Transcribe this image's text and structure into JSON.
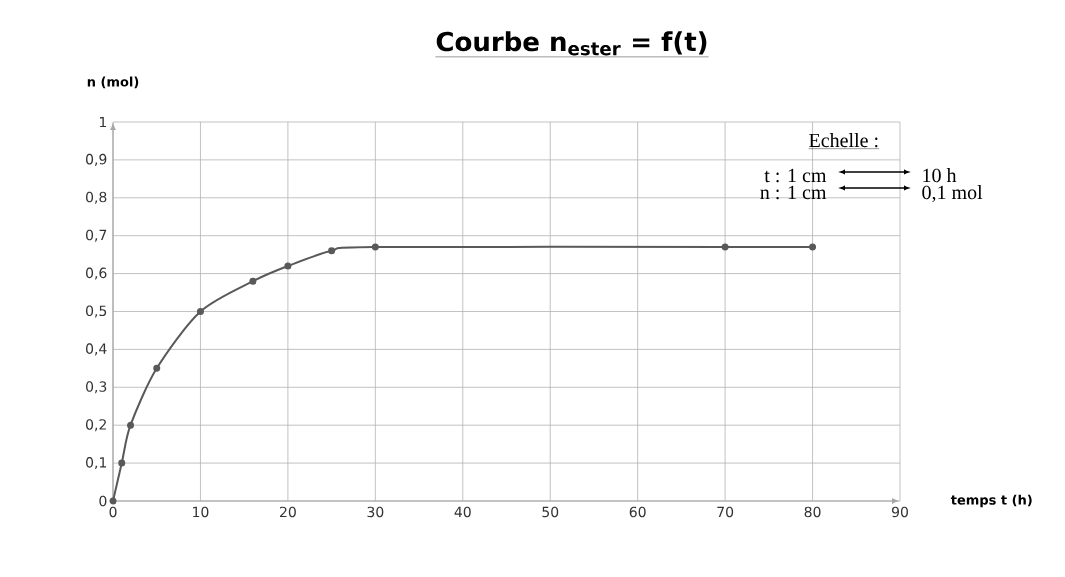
{
  "chart_data": {
    "type": "line",
    "title": "Courbe n$_{ester}$ = f(t)",
    "xlabel": "temps t (h)",
    "ylabel": "n (mol)",
    "x": [
      0,
      1,
      2,
      5,
      10,
      16,
      20,
      25,
      30,
      70,
      80
    ],
    "series": [
      {
        "color": "#595959",
        "values": [
          0,
          0.1,
          0.2,
          0.35,
          0.5,
          0.58,
          0.62,
          0.66,
          0.67,
          0.67,
          0.67
        ]
      }
    ],
    "xlim": [
      0,
      90
    ],
    "xticks": [
      0,
      10,
      20,
      30,
      40,
      50,
      60,
      70,
      80,
      90
    ],
    "ylim": [
      0,
      1
    ],
    "yticks": [
      0,
      {
        "value": 0.1,
        "label": "0,1"
      },
      {
        "value": 0.2,
        "label": "0,2"
      },
      {
        "value": 0.3,
        "label": "0,3"
      },
      {
        "value": 0.4,
        "label": "0,4"
      },
      {
        "value": 0.5,
        "label": "0,5"
      },
      {
        "value": 0.6,
        "label": "0,6"
      },
      {
        "value": 0.7,
        "label": "0,7"
      },
      {
        "value": 0.8,
        "label": "0,8"
      },
      {
        "value": 0.9,
        "label": "0,9"
      },
      1
    ],
    "grid": true,
    "marker": "circle",
    "line_style": "solid",
    "annotations": [
      "Echelle :",
      "t : 1 cm",
      "10 h",
      "n : 1 cm",
      "0,1 mol"
    ]
  }
}
